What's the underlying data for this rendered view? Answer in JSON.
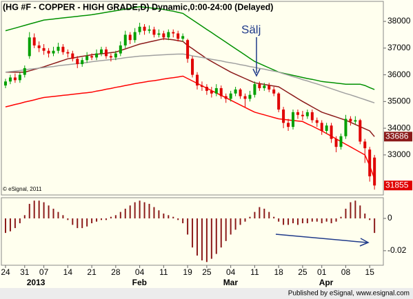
{
  "title": "(HG #F - COPPER - HIGH GRADE,D) Dynamic,0:00-24:00 (Delayed)",
  "watermark": "© eSignal, 2011",
  "annotation": "Sälj",
  "footer": "Published by eSignal, www.esignal.com",
  "chart_data": [
    {
      "type": "candlestick",
      "categories": [
        "24",
        null,
        null,
        null,
        "31",
        null,
        null,
        null,
        "07",
        null,
        null,
        null,
        null,
        "14",
        null,
        null,
        null,
        null,
        "21",
        null,
        null,
        null,
        null,
        "28",
        null,
        null,
        null,
        null,
        "04",
        null,
        null,
        null,
        null,
        "11",
        null,
        null,
        null,
        null,
        "19",
        null,
        null,
        null,
        "25",
        null,
        null,
        null,
        null,
        "04",
        null,
        null,
        null,
        null,
        "11",
        null,
        null,
        null,
        null,
        "18",
        null,
        null,
        null,
        null,
        "25",
        null,
        null,
        null,
        "01",
        null,
        null,
        null,
        null,
        "08",
        null,
        null,
        null,
        null,
        "15",
        null
      ],
      "month_labels": [
        null,
        null,
        null,
        null,
        null,
        "2013",
        null,
        null,
        null,
        null,
        null,
        null,
        null,
        null,
        null,
        null,
        null,
        null,
        null,
        null,
        null,
        null,
        null,
        null,
        null,
        null,
        null,
        "Feb",
        null,
        null,
        null,
        null,
        null,
        null,
        null,
        null,
        null,
        null,
        null,
        null,
        null,
        null,
        null,
        null,
        null,
        null,
        "Mar",
        null,
        null,
        null,
        null,
        null,
        null,
        null,
        null,
        null,
        null,
        null,
        null,
        null,
        null,
        null,
        null,
        null,
        null,
        null,
        "Apr",
        null,
        null,
        null,
        null,
        null,
        null,
        null,
        null,
        null,
        null,
        null
      ],
      "open": [
        35600,
        35750,
        35900,
        35800,
        36000,
        36700,
        37400,
        37100,
        37000,
        36900,
        36800,
        36900,
        37050,
        36850,
        36800,
        36600,
        36400,
        36550,
        36700,
        36650,
        36800,
        36950,
        36700,
        36650,
        36800,
        37100,
        37500,
        37300,
        37600,
        37800,
        37650,
        37700,
        37500,
        37550,
        37400,
        37600,
        37550,
        37350,
        37300,
        36600,
        36000,
        35600,
        35550,
        35400,
        35300,
        35500,
        35200,
        35100,
        35300,
        35450,
        35200,
        35100,
        35250,
        35650,
        35500,
        35600,
        35450,
        35300,
        34700,
        34200,
        34050,
        34600,
        34500,
        34450,
        34600,
        34300,
        34200,
        33900,
        34100,
        33600,
        33300,
        33700,
        34350,
        34250,
        34300,
        33500,
        33200,
        32900
      ],
      "high": [
        35850,
        36000,
        36050,
        36100,
        36350,
        37600,
        37550,
        37250,
        37150,
        37000,
        37050,
        37200,
        37150,
        36950,
        36900,
        36700,
        36650,
        36850,
        36800,
        36950,
        37050,
        37050,
        36800,
        36900,
        37250,
        37650,
        37600,
        37750,
        37950,
        37900,
        37850,
        37800,
        37700,
        37650,
        37700,
        37700,
        37650,
        37550,
        37350,
        36700,
        36100,
        35750,
        35650,
        35550,
        35650,
        35600,
        35300,
        35400,
        35550,
        35500,
        35300,
        35400,
        35750,
        35750,
        35700,
        35700,
        35550,
        35350,
        34800,
        34350,
        34700,
        34700,
        34650,
        34700,
        34700,
        34400,
        34300,
        34200,
        34200,
        33700,
        33800,
        34500,
        34450,
        34450,
        34350,
        33600,
        33300,
        33000
      ],
      "low": [
        35500,
        35650,
        35700,
        35700,
        35900,
        36600,
        37000,
        36850,
        36750,
        36650,
        36700,
        36800,
        36750,
        36650,
        36500,
        36250,
        36300,
        36450,
        36550,
        36550,
        36700,
        36600,
        36500,
        36550,
        36700,
        37000,
        37150,
        37200,
        37500,
        37500,
        37550,
        37400,
        37400,
        37300,
        37300,
        37400,
        37250,
        37250,
        36450,
        35900,
        35450,
        35400,
        35250,
        35150,
        35200,
        35100,
        34950,
        35000,
        35200,
        35100,
        34800,
        35000,
        35150,
        35400,
        35400,
        35350,
        35200,
        34600,
        34000,
        33900,
        33950,
        34350,
        34300,
        34350,
        34200,
        34050,
        33750,
        33800,
        33450,
        33100,
        33200,
        33600,
        34100,
        34150,
        33400,
        32700,
        32000,
        31700
      ],
      "close": [
        35750,
        35900,
        35800,
        36000,
        36250,
        37400,
        37100,
        37000,
        36900,
        36800,
        36900,
        37050,
        36850,
        36800,
        36600,
        36400,
        36550,
        36700,
        36650,
        36800,
        36950,
        36700,
        36650,
        36800,
        37100,
        37500,
        37300,
        37600,
        37800,
        37650,
        37700,
        37500,
        37550,
        37400,
        37600,
        37550,
        37350,
        37450,
        36600,
        36000,
        35600,
        35550,
        35400,
        35300,
        35500,
        35200,
        35100,
        35300,
        35450,
        35200,
        35100,
        35250,
        35650,
        35500,
        35600,
        35450,
        35300,
        34700,
        34200,
        34050,
        34600,
        34500,
        34450,
        34600,
        34300,
        34200,
        33900,
        34100,
        33600,
        33300,
        33700,
        34350,
        34250,
        34300,
        33500,
        33250,
        32200,
        31855
      ],
      "up_color": "#00a000",
      "down_color": "#e00000",
      "overlays": [
        {
          "color": "#009000",
          "values": [
            37650,
            37700,
            37750,
            37800,
            37850,
            37900,
            37950,
            38000,
            38050,
            38070,
            38090,
            38110,
            38130,
            38150,
            38170,
            38190,
            38210,
            38230,
            38250,
            38280,
            38310,
            38340,
            38370,
            38400,
            38430,
            38460,
            38490,
            38520,
            38550,
            38530,
            38510,
            38490,
            38470,
            38450,
            38410,
            38380,
            38340,
            38300,
            38180,
            38060,
            37940,
            37820,
            37700,
            37580,
            37460,
            37340,
            37220,
            37100,
            36980,
            36860,
            36740,
            36620,
            36500,
            36420,
            36340,
            36260,
            36180,
            36100,
            36060,
            36020,
            35980,
            35940,
            35900,
            35860,
            35830,
            35790,
            35750,
            35730,
            35710,
            35690,
            35670,
            35650,
            35650,
            35650,
            35650,
            35600,
            35520,
            35450
          ]
        },
        {
          "color": "#8b1a1a",
          "values": [
            36100,
            36100,
            36100,
            36100,
            36100,
            36150,
            36200,
            36250,
            36300,
            36360,
            36420,
            36480,
            36540,
            36600,
            36630,
            36660,
            36690,
            36720,
            36750,
            36770,
            36790,
            36810,
            36830,
            36850,
            36910,
            36970,
            37030,
            37090,
            37150,
            37190,
            37230,
            37270,
            37310,
            37350,
            37330,
            37310,
            37280,
            37250,
            37100,
            36980,
            36850,
            36730,
            36600,
            36500,
            36400,
            36300,
            36200,
            36100,
            36020,
            35940,
            35860,
            35780,
            35700,
            35670,
            35640,
            35610,
            35580,
            35550,
            35440,
            35330,
            35220,
            35110,
            35000,
            34900,
            34800,
            34700,
            34600,
            34540,
            34480,
            34420,
            34360,
            34300,
            34220,
            34140,
            34060,
            33980,
            33900,
            33686
          ]
        },
        {
          "color": "#a0a0a0",
          "values": [
            36100,
            36120,
            36140,
            36160,
            36190,
            36210,
            36230,
            36250,
            36270,
            36290,
            36310,
            36340,
            36360,
            36380,
            36400,
            36420,
            36440,
            36460,
            36490,
            36510,
            36530,
            36550,
            36570,
            36590,
            36610,
            36640,
            36660,
            36680,
            36700,
            36710,
            36720,
            36730,
            36740,
            36750,
            36760,
            36770,
            36775,
            36780,
            36750,
            36710,
            36680,
            36650,
            36620,
            36580,
            36550,
            36520,
            36480,
            36450,
            36420,
            36380,
            36350,
            36310,
            36280,
            36240,
            36210,
            36170,
            36140,
            36100,
            36040,
            35990,
            35930,
            35880,
            35820,
            35770,
            35710,
            35660,
            35600,
            35540,
            35480,
            35420,
            35360,
            35300,
            35250,
            35190,
            35130,
            35070,
            35010,
            34950
          ]
        },
        {
          "color": "#ff0000",
          "values": [
            34800,
            34840,
            34890,
            34930,
            34980,
            35020,
            35060,
            35110,
            35150,
            35170,
            35190,
            35210,
            35230,
            35250,
            35270,
            35290,
            35310,
            35330,
            35350,
            35390,
            35420,
            35460,
            35490,
            35530,
            35560,
            35600,
            35630,
            35670,
            35700,
            35730,
            35760,
            35780,
            35810,
            35840,
            35870,
            35890,
            35920,
            35950,
            35860,
            35770,
            35680,
            35590,
            35500,
            35410,
            35320,
            35230,
            35140,
            35050,
            34960,
            34870,
            34780,
            34690,
            34600,
            34550,
            34500,
            34450,
            34400,
            34350,
            34330,
            34310,
            34290,
            34270,
            34250,
            34160,
            34080,
            33990,
            33900,
            33800,
            33700,
            33600,
            33500,
            33400,
            33300,
            33200,
            33100,
            33000,
            32600,
            32100
          ]
        }
      ],
      "ylim": [
        31500,
        38750
      ],
      "yticks": [
        33000,
        34000,
        35000,
        36000,
        37000,
        38000
      ]
    },
    {
      "type": "bar",
      "color": "#8b1a1a",
      "values": [
        -0.009,
        -0.008,
        -0.006,
        -0.003,
        0.002,
        0.009,
        0.011,
        0.011,
        0.01,
        0.008,
        0.006,
        0.004,
        0.002,
        -0.001,
        -0.004,
        -0.006,
        -0.006,
        -0.005,
        -0.003,
        -0.002,
        -0.001,
        -0.001,
        0.001,
        0.002,
        0.004,
        0.006,
        0.008,
        0.01,
        0.011,
        0.01,
        0.009,
        0.007,
        0.005,
        0.003,
        0.002,
        0.001,
        -0.001,
        -0.003,
        -0.01,
        -0.018,
        -0.023,
        -0.026,
        -0.027,
        -0.025,
        -0.022,
        -0.018,
        -0.014,
        -0.01,
        -0.007,
        -0.004,
        -0.002,
        0.001,
        0.004,
        0.007,
        0.006,
        0.004,
        0.001,
        -0.002,
        -0.004,
        -0.004,
        -0.003,
        -0.004,
        -0.003,
        -0.003,
        -0.002,
        -0.002,
        -0.003,
        -0.002,
        -0.003,
        -0.002,
        0.001,
        0.006,
        0.01,
        0.011,
        0.008,
        0.003,
        -0.001,
        -0.009
      ],
      "ylim": [
        -0.029,
        0.0128
      ],
      "yticks": [
        -0.02,
        0
      ]
    }
  ]
}
